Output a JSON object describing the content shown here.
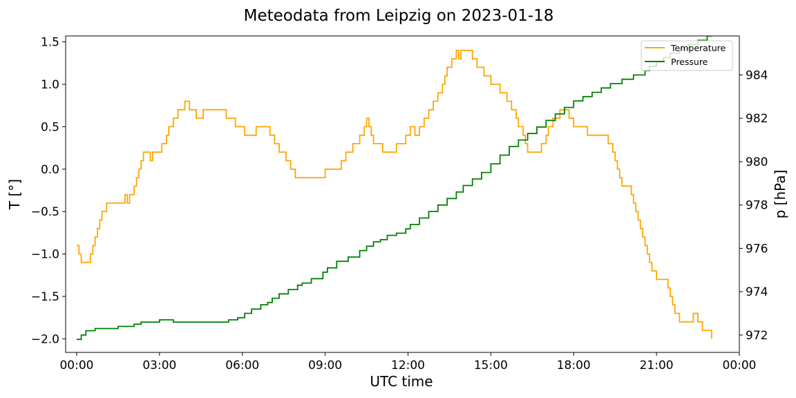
{
  "chart_data": {
    "type": "line",
    "title": "Meteodata from Leipzig on 2023-01-18",
    "xlabel": "UTC time",
    "ylabel_left": "T [°]",
    "ylabel_right": "p [hPa]",
    "xlim": [
      "2023-01-17 23:36",
      "2023-01-19 00:00"
    ],
    "x_ticks": [
      "00:00",
      "03:00",
      "06:00",
      "09:00",
      "12:00",
      "15:00",
      "18:00",
      "21:00",
      "00:00"
    ],
    "ylim_left": [
      -2.16,
      1.57
    ],
    "y_ticks_left": [
      "1.5",
      "1.0",
      "0.5",
      "0.0",
      "−0.5",
      "−1.0",
      "−1.5",
      "−2.0"
    ],
    "ylim_right": [
      971.2,
      985.8
    ],
    "y_ticks_right": [
      "984",
      "982",
      "980",
      "978",
      "976",
      "974",
      "972"
    ],
    "legend_position": "top-right",
    "grid": false,
    "colors": {
      "Temperature": "#ffa500",
      "Pressure": "#008000"
    },
    "series": [
      {
        "name": "Temperature",
        "axis": "left",
        "x": [
          "00:00",
          "00:05",
          "00:10",
          "00:20",
          "00:30",
          "00:35",
          "00:40",
          "00:45",
          "00:50",
          "00:55",
          "01:00",
          "01:05",
          "01:30",
          "01:45",
          "01:50",
          "01:55",
          "02:05",
          "02:10",
          "02:15",
          "02:20",
          "02:25",
          "02:30",
          "02:35",
          "02:40",
          "02:45",
          "03:05",
          "03:10",
          "03:15",
          "03:20",
          "03:30",
          "03:40",
          "03:45",
          "03:50",
          "03:55",
          "04:05",
          "04:20",
          "04:35",
          "04:50",
          "05:25",
          "05:45",
          "06:05",
          "06:15",
          "06:30",
          "07:00",
          "07:10",
          "07:20",
          "07:35",
          "07:45",
          "07:55",
          "08:05",
          "08:20",
          "08:35",
          "09:00",
          "09:35",
          "09:45",
          "10:00",
          "10:15",
          "10:25",
          "10:30",
          "10:35",
          "10:40",
          "10:45",
          "10:50",
          "10:55",
          "11:05",
          "11:15",
          "11:20",
          "11:35",
          "11:55",
          "12:05",
          "12:15",
          "12:25",
          "12:35",
          "12:45",
          "12:55",
          "13:05",
          "13:15",
          "13:20",
          "13:25",
          "13:35",
          "13:40",
          "13:45",
          "13:50",
          "13:55",
          "14:00",
          "14:10",
          "14:20",
          "14:30",
          "14:35",
          "14:45",
          "15:00",
          "15:20",
          "15:35",
          "15:45",
          "15:55",
          "16:00",
          "16:10",
          "16:15",
          "16:20",
          "16:30",
          "16:40",
          "16:50",
          "17:00",
          "17:05",
          "17:15",
          "17:30",
          "17:40",
          "17:50",
          "18:00",
          "18:10",
          "18:20",
          "18:30",
          "19:15",
          "19:25",
          "19:30",
          "19:35",
          "19:40",
          "19:45",
          "20:05",
          "20:10",
          "20:15",
          "20:20",
          "20:25",
          "20:30",
          "20:35",
          "20:40",
          "20:45",
          "20:50",
          "21:00",
          "21:20",
          "21:25",
          "21:30",
          "21:35",
          "21:40",
          "21:50",
          "22:00",
          "22:20",
          "22:30",
          "22:40",
          "22:55",
          "23:00"
        ],
        "values": [
          -0.9,
          -1.0,
          -1.1,
          -1.1,
          -1.0,
          -0.9,
          -0.8,
          -0.7,
          -0.6,
          -0.5,
          -0.5,
          -0.4,
          -0.4,
          -0.3,
          -0.4,
          -0.3,
          -0.2,
          -0.1,
          0.0,
          0.1,
          0.2,
          0.2,
          0.2,
          0.1,
          0.2,
          0.3,
          0.3,
          0.4,
          0.5,
          0.6,
          0.7,
          0.7,
          0.7,
          0.8,
          0.7,
          0.6,
          0.7,
          0.7,
          0.6,
          0.5,
          0.4,
          0.4,
          0.5,
          0.4,
          0.3,
          0.2,
          0.1,
          0.0,
          -0.1,
          -0.1,
          -0.1,
          -0.1,
          0.0,
          0.1,
          0.2,
          0.3,
          0.4,
          0.5,
          0.6,
          0.5,
          0.4,
          0.3,
          0.3,
          0.3,
          0.2,
          0.2,
          0.2,
          0.3,
          0.4,
          0.5,
          0.4,
          0.5,
          0.6,
          0.7,
          0.8,
          0.9,
          1.0,
          1.1,
          1.2,
          1.3,
          1.3,
          1.4,
          1.3,
          1.4,
          1.4,
          1.4,
          1.3,
          1.2,
          1.2,
          1.1,
          1.0,
          0.9,
          0.8,
          0.7,
          0.6,
          0.5,
          0.4,
          0.3,
          0.2,
          0.2,
          0.2,
          0.3,
          0.4,
          0.5,
          0.6,
          0.7,
          0.7,
          0.6,
          0.5,
          0.5,
          0.5,
          0.4,
          0.3,
          0.2,
          0.1,
          0.0,
          -0.1,
          -0.2,
          -0.3,
          -0.4,
          -0.5,
          -0.6,
          -0.7,
          -0.8,
          -0.9,
          -1.0,
          -1.1,
          -1.2,
          -1.3,
          -1.3,
          -1.4,
          -1.5,
          -1.6,
          -1.7,
          -1.8,
          -1.8,
          -1.7,
          -1.8,
          -1.9,
          -1.9,
          -2.0
        ]
      },
      {
        "name": "Pressure",
        "axis": "right",
        "x": [
          "00:00",
          "00:10",
          "00:20",
          "00:30",
          "00:40",
          "01:00",
          "01:10",
          "01:30",
          "01:50",
          "02:05",
          "02:20",
          "02:40",
          "03:00",
          "03:30",
          "04:00",
          "04:30",
          "05:00",
          "05:30",
          "05:50",
          "06:05",
          "06:20",
          "06:40",
          "06:55",
          "07:05",
          "07:20",
          "07:40",
          "08:00",
          "08:10",
          "08:30",
          "08:55",
          "09:05",
          "09:25",
          "09:50",
          "10:15",
          "10:30",
          "10:45",
          "11:00",
          "11:15",
          "11:35",
          "11:55",
          "12:05",
          "12:25",
          "12:45",
          "13:05",
          "13:25",
          "13:45",
          "14:00",
          "14:20",
          "14:40",
          "15:00",
          "15:20",
          "15:40",
          "16:00",
          "16:20",
          "16:40",
          "17:00",
          "17:20",
          "17:40",
          "18:00",
          "18:20",
          "18:40",
          "19:00",
          "19:20",
          "19:45",
          "20:10",
          "20:35",
          "20:45",
          "21:00",
          "21:15",
          "21:30",
          "21:50",
          "22:10",
          "22:30",
          "22:50",
          "23:00"
        ],
        "values": [
          971.8,
          972.0,
          972.2,
          972.2,
          972.3,
          972.3,
          972.3,
          972.4,
          972.4,
          972.5,
          972.6,
          972.6,
          972.7,
          972.6,
          972.6,
          972.6,
          972.6,
          972.7,
          972.8,
          973.0,
          973.2,
          973.4,
          973.5,
          973.7,
          973.9,
          974.1,
          974.3,
          974.4,
          974.6,
          974.9,
          975.1,
          975.4,
          975.6,
          975.9,
          976.1,
          976.3,
          976.4,
          976.6,
          976.7,
          976.9,
          977.1,
          977.4,
          977.7,
          978.0,
          978.3,
          978.6,
          978.9,
          979.2,
          979.5,
          979.9,
          980.3,
          980.7,
          981.0,
          981.3,
          981.6,
          981.9,
          982.2,
          982.5,
          982.8,
          983.0,
          983.2,
          983.4,
          983.6,
          983.8,
          984.0,
          984.2,
          984.4,
          984.6,
          984.8,
          985.0,
          985.2,
          985.4,
          985.6,
          985.8,
          985.8
        ]
      }
    ]
  }
}
